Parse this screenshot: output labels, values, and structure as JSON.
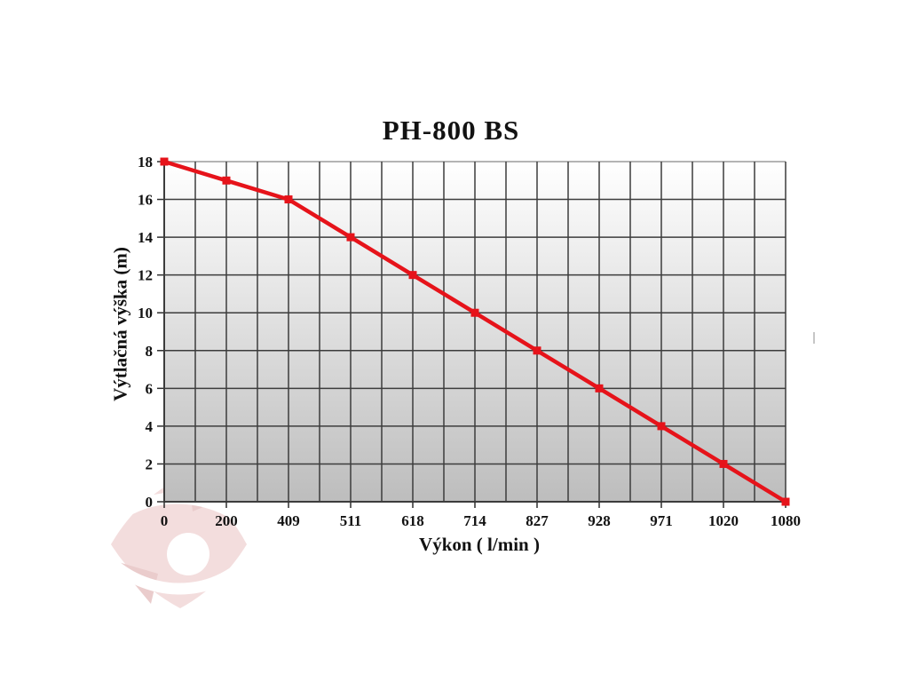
{
  "chart_data": {
    "type": "line",
    "title": "PH-800 BS",
    "xlabel": "Výkon ( l/min )",
    "ylabel": "Výtlačná výška (m)",
    "categories": [
      "0",
      "200",
      "409",
      "511",
      "618",
      "714",
      "827",
      "928",
      "971",
      "1020",
      "1080"
    ],
    "series": [
      {
        "name": "PH-800 BS",
        "values": [
          18,
          17,
          16,
          14,
          12,
          10,
          8,
          6,
          4,
          2,
          0
        ]
      }
    ],
    "ylim": [
      0,
      18
    ],
    "ytick_step": 2,
    "grid": "on",
    "legend_position": "none",
    "x_minor_gridlines_per_interval": 1,
    "colors": {
      "line": "#e6131a",
      "marker": "#e6131a",
      "grid": "#3c3c3c",
      "axis": "#2e2e2e",
      "plot_top_border": "#9c9c9c",
      "plot_bg_top": "#ffffff",
      "plot_bg_bottom": "#bdbdbd",
      "text": "#121212"
    },
    "marker_shape": "square"
  },
  "watermark": {
    "name": "pink-petal-logo",
    "color": "#f3dcdc",
    "accent_color": "#e9caca"
  }
}
